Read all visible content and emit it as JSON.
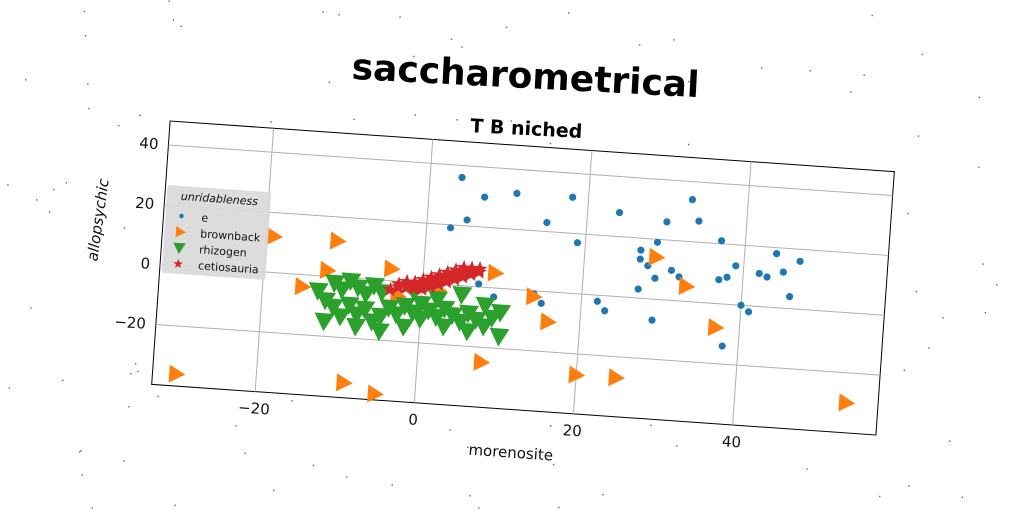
{
  "chart_data": {
    "type": "scatter",
    "title": "saccharometrical",
    "subtitle": "T B niched",
    "xlabel": "morenosite",
    "ylabel": "allopsychic",
    "xlim": [
      -33,
      58
    ],
    "ylim": [
      -40,
      48
    ],
    "x_ticks": [
      -20,
      0,
      20,
      40
    ],
    "x_tick_labels": [
      "−20",
      "0",
      "20",
      "40"
    ],
    "y_ticks": [
      -20,
      0,
      20,
      40
    ],
    "y_tick_labels": [
      "−20",
      "0",
      "20",
      "40"
    ],
    "grid": true,
    "legend": {
      "title": "unridableness",
      "placement": "center-left",
      "entries": [
        "e",
        "brownback",
        "rhizogen",
        "cetiosauria"
      ]
    },
    "series": [
      {
        "name": "e",
        "marker": "circle",
        "color": "#1f77b4",
        "points": [
          [
            4,
            36
          ],
          [
            3,
            19
          ],
          [
            5,
            22
          ],
          [
            7,
            30
          ],
          [
            11,
            32
          ],
          [
            15,
            23
          ],
          [
            18,
            32
          ],
          [
            19,
            17
          ],
          [
            24,
            28
          ],
          [
            27,
            16
          ],
          [
            28,
            11
          ],
          [
            27,
            13
          ],
          [
            29,
            7
          ],
          [
            27,
            3
          ],
          [
            30,
            26
          ],
          [
            32,
            8
          ],
          [
            33,
            34
          ],
          [
            34,
            27
          ],
          [
            31,
            10
          ],
          [
            29,
            19
          ],
          [
            37,
            8
          ],
          [
            38,
            9
          ],
          [
            39,
            13
          ],
          [
            37,
            21
          ],
          [
            40,
            0
          ],
          [
            41,
            -2
          ],
          [
            42,
            11
          ],
          [
            43,
            10
          ],
          [
            44,
            18
          ],
          [
            45,
            12
          ],
          [
            46,
            4
          ],
          [
            47,
            16
          ],
          [
            38,
            -14
          ],
          [
            22,
            -2
          ],
          [
            23,
            -5
          ],
          [
            29,
            -7
          ],
          [
            15,
            -4
          ],
          [
            10,
            -7
          ],
          [
            9,
            -3
          ],
          [
            9,
            -9
          ],
          [
            14,
            -1
          ],
          [
            7,
            1
          ]
        ]
      },
      {
        "name": "brownback",
        "marker": "triangle-right",
        "color": "#ff7f0e",
        "points": [
          [
            -30,
            -36
          ],
          [
            -15,
            -4
          ],
          [
            -12,
            2
          ],
          [
            -11,
            12
          ],
          [
            -9,
            -35
          ],
          [
            -5,
            -38
          ],
          [
            -4,
            4
          ],
          [
            9,
            5
          ],
          [
            14,
            -2
          ],
          [
            16,
            -10
          ],
          [
            20,
            -27
          ],
          [
            25,
            -27
          ],
          [
            29,
            14
          ],
          [
            33,
            5
          ],
          [
            37,
            -8
          ],
          [
            54,
            -30
          ],
          [
            8,
            -25
          ],
          [
            -19,
            12
          ],
          [
            -3,
            -5
          ],
          [
            2,
            -2
          ]
        ]
      },
      {
        "name": "rhizogen",
        "marker": "triangle-down",
        "color": "#2ca02c",
        "points": [
          [
            -12,
            -8
          ],
          [
            -11,
            -10
          ],
          [
            -10,
            -13
          ],
          [
            -9,
            -9
          ],
          [
            -8,
            -12
          ],
          [
            -7,
            -10
          ],
          [
            -6,
            -14
          ],
          [
            -5,
            -12
          ],
          [
            -4,
            -9
          ],
          [
            -3,
            -11
          ],
          [
            -2,
            -8
          ],
          [
            -1,
            -10
          ],
          [
            0,
            -7
          ],
          [
            1,
            -9
          ],
          [
            2,
            -11
          ],
          [
            3,
            -8
          ],
          [
            4,
            -10
          ],
          [
            5,
            -12
          ],
          [
            6,
            -9
          ],
          [
            7,
            -11
          ],
          [
            8,
            -13
          ],
          [
            9,
            -10
          ],
          [
            10,
            -8
          ],
          [
            -11,
            -2
          ],
          [
            -10,
            -4
          ],
          [
            -9,
            -1
          ],
          [
            -8,
            -3
          ],
          [
            -7,
            -5
          ],
          [
            -6,
            -2
          ],
          [
            -5,
            -4
          ],
          [
            -12,
            -15
          ],
          [
            -8,
            -16
          ],
          [
            -5,
            -17
          ],
          [
            -2,
            -15
          ],
          [
            0,
            -12
          ],
          [
            3,
            -14
          ],
          [
            6,
            -15
          ],
          [
            10,
            -16
          ],
          [
            -13,
            -5
          ],
          [
            -1,
            -3
          ],
          [
            2,
            -5
          ],
          [
            5,
            -3
          ],
          [
            8,
            -6
          ]
        ]
      },
      {
        "name": "cetiosauria",
        "marker": "star",
        "color": "#d62728",
        "points": [
          [
            -4,
            -3
          ],
          [
            -3,
            -2
          ],
          [
            -2,
            -2
          ],
          [
            -1,
            -1
          ],
          [
            0,
            -1
          ],
          [
            0,
            0
          ],
          [
            1,
            0
          ],
          [
            1,
            1
          ],
          [
            2,
            1
          ],
          [
            2,
            2
          ],
          [
            3,
            2
          ],
          [
            3,
            3
          ],
          [
            4,
            3
          ],
          [
            4,
            4
          ],
          [
            5,
            4
          ],
          [
            5,
            5
          ],
          [
            6,
            5
          ],
          [
            7,
            6
          ],
          [
            -3,
            -1
          ],
          [
            -2,
            0
          ],
          [
            -1,
            0
          ],
          [
            0,
            1
          ],
          [
            1,
            2
          ],
          [
            2,
            3
          ],
          [
            3,
            4
          ],
          [
            4,
            5
          ],
          [
            5,
            6
          ],
          [
            6,
            6
          ],
          [
            -1,
            -2
          ],
          [
            0,
            -2
          ],
          [
            1,
            -1
          ],
          [
            2,
            0
          ],
          [
            3,
            1
          ],
          [
            4,
            2
          ],
          [
            5,
            3
          ],
          [
            6,
            4
          ],
          [
            7,
            5
          ]
        ]
      }
    ]
  }
}
